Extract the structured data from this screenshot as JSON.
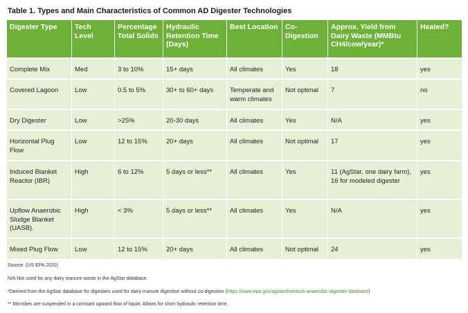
{
  "title": "Table 1. Types and Main Characteristics of Common AD Digester Technologies",
  "headers": [
    "Digester Type",
    "Tech Level",
    "Percentage Total Solids",
    "Hydraulic Retention Time (Days)",
    "Best Location",
    "Co-Digestion",
    "Approx. Yield from Dairy Waste (MMBtu CH4/cow/year)*",
    "Heated?"
  ],
  "rows": [
    [
      "Complete Mix",
      "Med",
      "3 to 10%",
      "15+ days",
      "All climates",
      "Yes",
      "18",
      "yes"
    ],
    [
      "Covered Lagoon",
      "Low",
      "0.5 to 5%",
      "30+ to 60+ days",
      "Temperate and warm climates",
      "Not optimal",
      "7",
      "no"
    ],
    [
      "Dry Digester",
      "Low",
      ">25%",
      "20-30 days",
      "All climates",
      "Yes",
      "N/A",
      "yes"
    ],
    [
      "Horizontal Plug Flow",
      "Low",
      "12 to 15%",
      "20+ days",
      "All climates",
      "Not optimal",
      "17",
      "yes"
    ],
    [
      "Induced Blanket Reactor (IBR)",
      "High",
      "6 to 12%",
      "5 days or less**",
      "All climates",
      "Yes",
      "11 (AgStar, one dairy farm), 16 for modeled digester",
      "yes"
    ],
    [
      "Upflow Anaerobic Sludge Blanket (UASB).",
      "High",
      "< 3%",
      "5 days or less**",
      "All climates",
      "Yes",
      "N/A",
      "yes"
    ],
    [
      "Mixed Plug Flow",
      "Low",
      "12 to 15%",
      "20+ days",
      "All climates",
      "Not optimal",
      "24",
      "yes"
    ]
  ],
  "footnotes": {
    "source": "Source: (US EPA 2020)",
    "na": "N/A Not used for any dairy manure waste in the AgStar database.",
    "derived": "*Derived from the AgStar database for digesters used for dairy manure digestion without co-digestion (",
    "derived_link": "https://www.epa.gov/agstar/livestock-anaerobic-digester-database",
    "derived_end": ")",
    "microbes": "** Microbes are suspended in a constant upward flow of liquid. Allows for short hydraulic retention time."
  },
  "colors": {
    "header_bg": "#6eb139",
    "row_bg": "#e6f0d6",
    "link": "#4a8a2a"
  }
}
